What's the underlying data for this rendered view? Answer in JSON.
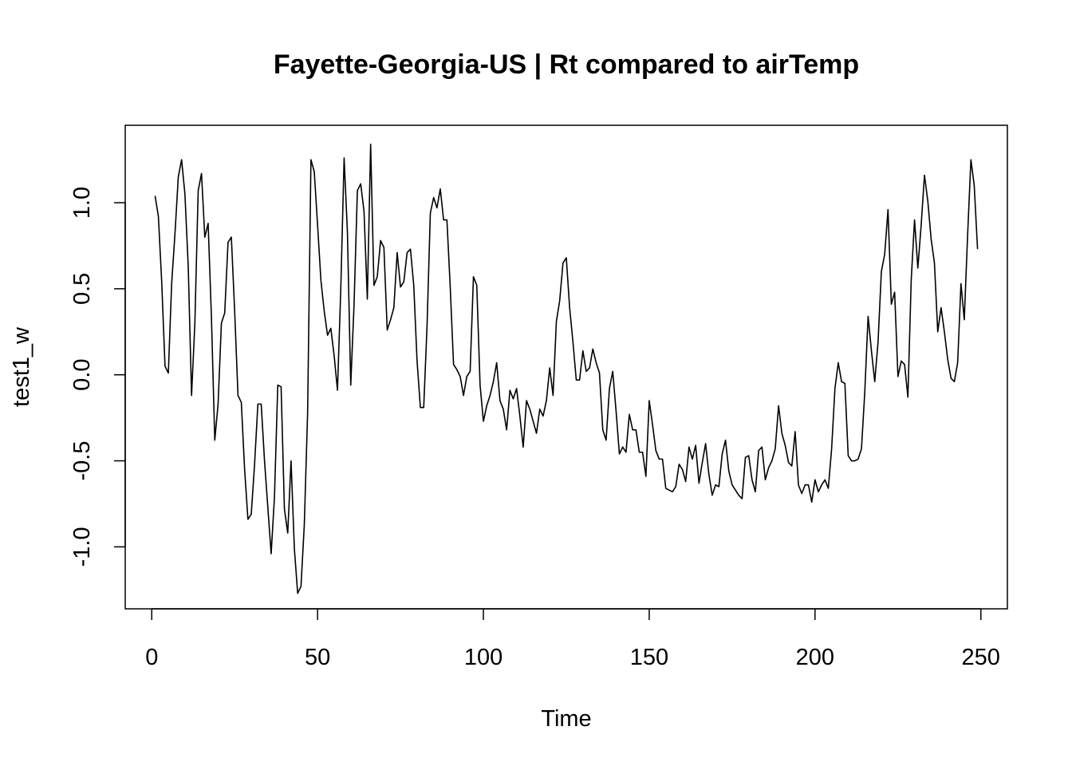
{
  "chart_data": {
    "type": "line",
    "title": "Fayette-Georgia-US | Rt compared to airTemp",
    "xlabel": "Time",
    "ylabel": "test1_w",
    "xlim": [
      -8,
      258
    ],
    "ylim": [
      -1.36,
      1.45
    ],
    "x_ticks": [
      0,
      50,
      100,
      150,
      200,
      250
    ],
    "x_tick_labels": [
      "0",
      "50",
      "100",
      "150",
      "200",
      "250"
    ],
    "y_ticks": [
      -1.0,
      -0.5,
      0.0,
      0.5,
      1.0
    ],
    "y_tick_labels": [
      "-1.0",
      "-0.5",
      "0.0",
      "0.5",
      "1.0"
    ],
    "grid": false,
    "line_color": "#000000",
    "series": [
      {
        "x_start": 1,
        "x_step": 1,
        "values": [
          1.04,
          0.92,
          0.54,
          0.05,
          0.01,
          0.53,
          0.82,
          1.15,
          1.25,
          1.05,
          0.63,
          -0.12,
          0.3,
          1.07,
          1.17,
          0.8,
          0.88,
          0.33,
          -0.38,
          -0.17,
          0.3,
          0.36,
          0.77,
          0.8,
          0.37,
          -0.12,
          -0.16,
          -0.55,
          -0.84,
          -0.81,
          -0.52,
          -0.17,
          -0.17,
          -0.5,
          -0.77,
          -1.04,
          -0.71,
          -0.06,
          -0.07,
          -0.78,
          -0.92,
          -0.5,
          -1.01,
          -1.27,
          -1.23,
          -0.87,
          -0.22,
          1.25,
          1.18,
          0.87,
          0.55,
          0.37,
          0.23,
          0.27,
          0.11,
          -0.09,
          0.5,
          1.26,
          0.83,
          -0.06,
          0.41,
          1.07,
          1.11,
          0.95,
          0.44,
          1.34,
          0.52,
          0.57,
          0.78,
          0.74,
          0.26,
          0.32,
          0.39,
          0.71,
          0.51,
          0.54,
          0.71,
          0.73,
          0.52,
          0.08,
          -0.19,
          -0.19,
          0.28,
          0.94,
          1.03,
          0.97,
          1.08,
          0.9,
          0.9,
          0.51,
          0.06,
          0.03,
          -0.01,
          -0.12,
          -0.01,
          0.02,
          0.57,
          0.52,
          -0.06,
          -0.27,
          -0.18,
          -0.12,
          -0.04,
          0.07,
          -0.15,
          -0.2,
          -0.32,
          -0.09,
          -0.14,
          -0.08,
          -0.24,
          -0.42,
          -0.15,
          -0.2,
          -0.27,
          -0.34,
          -0.2,
          -0.24,
          -0.15,
          0.04,
          -0.12,
          0.31,
          0.43,
          0.65,
          0.68,
          0.39,
          0.19,
          -0.03,
          -0.03,
          0.14,
          0.02,
          0.04,
          0.15,
          0.07,
          0.01,
          -0.32,
          -0.38,
          -0.08,
          0.02,
          -0.21,
          -0.46,
          -0.42,
          -0.45,
          -0.23,
          -0.32,
          -0.32,
          -0.45,
          -0.45,
          -0.59,
          -0.15,
          -0.29,
          -0.44,
          -0.49,
          -0.49,
          -0.66,
          -0.67,
          -0.68,
          -0.65,
          -0.52,
          -0.55,
          -0.62,
          -0.42,
          -0.49,
          -0.41,
          -0.63,
          -0.51,
          -0.4,
          -0.58,
          -0.7,
          -0.64,
          -0.65,
          -0.46,
          -0.38,
          -0.56,
          -0.64,
          -0.67,
          -0.7,
          -0.72,
          -0.48,
          -0.47,
          -0.61,
          -0.68,
          -0.44,
          -0.42,
          -0.61,
          -0.54,
          -0.5,
          -0.43,
          -0.18,
          -0.34,
          -0.41,
          -0.51,
          -0.53,
          -0.33,
          -0.64,
          -0.69,
          -0.64,
          -0.64,
          -0.74,
          -0.61,
          -0.68,
          -0.64,
          -0.61,
          -0.66,
          -0.43,
          -0.08,
          0.07,
          -0.04,
          -0.05,
          -0.47,
          -0.5,
          -0.5,
          -0.49,
          -0.43,
          -0.1,
          0.34,
          0.14,
          -0.04,
          0.19,
          0.6,
          0.7,
          0.96,
          0.41,
          0.48,
          -0.01,
          0.08,
          0.06,
          -0.13,
          0.55,
          0.9,
          0.62,
          0.87,
          1.16,
          1.01,
          0.79,
          0.65,
          0.25,
          0.39,
          0.25,
          0.09,
          -0.02,
          -0.04,
          0.07,
          0.53,
          0.32,
          0.81,
          1.25,
          1.1,
          0.73
        ]
      }
    ]
  }
}
